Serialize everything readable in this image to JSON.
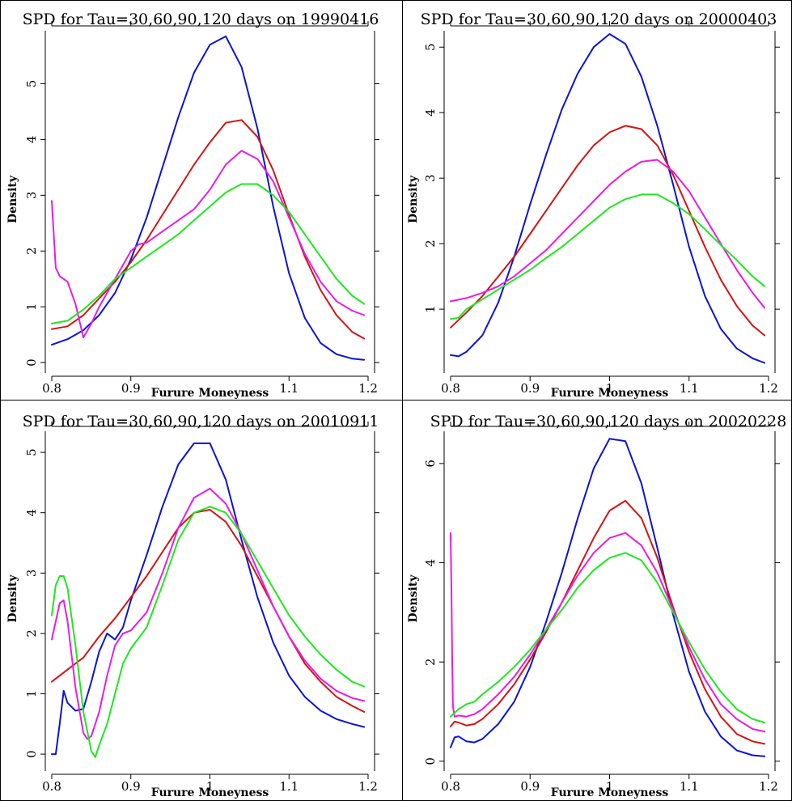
{
  "colors": {
    "tau30": "#0a14d6",
    "tau60": "#d41414",
    "tau90": "#e81ce8",
    "tau120": "#1ee81e"
  },
  "chart_data": [
    {
      "type": "line",
      "title": "SPD for Tau=30,60,90,120 days on 19990416",
      "xlabel": "Furure Moneyness",
      "ylabel": "Density",
      "xlim": [
        0.8,
        1.2
      ],
      "ylim": [
        -0.1,
        5.95
      ],
      "xticks": [
        "0.8",
        "0.9",
        "1.1",
        "1.2"
      ],
      "yticks": [
        "0",
        "1",
        "2",
        "3",
        "4",
        "5"
      ],
      "series": [
        {
          "x": [
            0.8,
            0.82,
            0.84,
            0.86,
            0.88,
            0.9,
            0.92,
            0.94,
            0.96,
            0.98,
            1.0,
            1.02,
            1.04,
            1.06,
            1.08,
            1.1,
            1.12,
            1.14,
            1.16,
            1.18,
            1.195
          ],
          "y": [
            0.32,
            0.42,
            0.58,
            0.85,
            1.25,
            1.85,
            2.6,
            3.5,
            4.4,
            5.2,
            5.7,
            5.85,
            5.3,
            4.2,
            2.8,
            1.6,
            0.8,
            0.35,
            0.15,
            0.07,
            0.05
          ]
        },
        {
          "x": [
            0.8,
            0.82,
            0.84,
            0.86,
            0.88,
            0.9,
            0.92,
            0.94,
            0.96,
            0.98,
            1.0,
            1.02,
            1.04,
            1.06,
            1.08,
            1.1,
            1.12,
            1.14,
            1.16,
            1.18,
            1.195
          ],
          "y": [
            0.6,
            0.65,
            0.85,
            1.15,
            1.45,
            1.8,
            2.2,
            2.65,
            3.1,
            3.55,
            3.95,
            4.3,
            4.35,
            4.05,
            3.45,
            2.65,
            1.9,
            1.3,
            0.85,
            0.55,
            0.43
          ]
        },
        {
          "x": [
            0.8,
            0.805,
            0.81,
            0.82,
            0.83,
            0.84,
            0.85,
            0.86,
            0.88,
            0.9,
            0.91,
            0.92,
            0.94,
            0.96,
            0.98,
            1.0,
            1.02,
            1.04,
            1.06,
            1.08,
            1.1,
            1.12,
            1.14,
            1.16,
            1.18,
            1.195
          ],
          "y": [
            2.9,
            1.7,
            1.55,
            1.45,
            1.05,
            0.45,
            0.7,
            1.0,
            1.5,
            2.0,
            2.12,
            2.15,
            2.35,
            2.55,
            2.75,
            3.1,
            3.55,
            3.8,
            3.65,
            3.25,
            2.6,
            1.95,
            1.45,
            1.1,
            0.93,
            0.85
          ]
        },
        {
          "x": [
            0.8,
            0.82,
            0.84,
            0.86,
            0.88,
            0.9,
            0.92,
            0.94,
            0.96,
            0.98,
            1.0,
            1.02,
            1.04,
            1.06,
            1.08,
            1.1,
            1.12,
            1.14,
            1.16,
            1.18,
            1.195
          ],
          "y": [
            0.7,
            0.75,
            0.95,
            1.2,
            1.5,
            1.7,
            1.9,
            2.1,
            2.3,
            2.55,
            2.8,
            3.05,
            3.2,
            3.2,
            3.0,
            2.7,
            2.3,
            1.9,
            1.5,
            1.2,
            1.05
          ]
        }
      ]
    },
    {
      "type": "line",
      "title": "SPD for Tau=30,60,90,120 days on 20000403",
      "xlabel": "Furure Moneyness",
      "ylabel": "Density",
      "xlim": [
        0.8,
        1.2
      ],
      "ylim": [
        0.1,
        5.25
      ],
      "xticks": [
        "0.8",
        "0.9",
        "1",
        "1.1",
        "1.2"
      ],
      "yticks": [
        "1",
        "2",
        "3",
        "4",
        "5"
      ],
      "series": [
        {
          "x": [
            0.8,
            0.81,
            0.82,
            0.84,
            0.86,
            0.88,
            0.9,
            0.92,
            0.94,
            0.96,
            0.98,
            1.0,
            1.02,
            1.04,
            1.06,
            1.08,
            1.1,
            1.12,
            1.14,
            1.16,
            1.18,
            1.195
          ],
          "y": [
            0.3,
            0.28,
            0.35,
            0.6,
            1.1,
            1.8,
            2.6,
            3.35,
            4.05,
            4.6,
            5.0,
            5.2,
            5.05,
            4.55,
            3.8,
            2.9,
            1.95,
            1.2,
            0.7,
            0.4,
            0.25,
            0.18
          ]
        },
        {
          "x": [
            0.8,
            0.82,
            0.84,
            0.86,
            0.88,
            0.9,
            0.92,
            0.94,
            0.96,
            0.98,
            1.0,
            1.02,
            1.04,
            1.06,
            1.08,
            1.1,
            1.12,
            1.14,
            1.16,
            1.18,
            1.195
          ],
          "y": [
            0.72,
            0.95,
            1.2,
            1.5,
            1.8,
            2.15,
            2.5,
            2.85,
            3.2,
            3.5,
            3.7,
            3.8,
            3.75,
            3.5,
            3.05,
            2.5,
            1.95,
            1.45,
            1.05,
            0.75,
            0.6
          ]
        },
        {
          "x": [
            0.8,
            0.82,
            0.84,
            0.86,
            0.88,
            0.9,
            0.92,
            0.94,
            0.96,
            0.98,
            1.0,
            1.02,
            1.04,
            1.06,
            1.08,
            1.1,
            1.12,
            1.14,
            1.16,
            1.18,
            1.195
          ],
          "y": [
            1.12,
            1.17,
            1.25,
            1.35,
            1.5,
            1.7,
            1.9,
            2.15,
            2.4,
            2.65,
            2.9,
            3.1,
            3.25,
            3.28,
            3.1,
            2.8,
            2.4,
            2.0,
            1.6,
            1.25,
            1.02
          ]
        },
        {
          "x": [
            0.8,
            0.81,
            0.82,
            0.84,
            0.86,
            0.88,
            0.9,
            0.92,
            0.94,
            0.96,
            0.98,
            1.0,
            1.02,
            1.04,
            1.06,
            1.08,
            1.1,
            1.12,
            1.14,
            1.16,
            1.18,
            1.195
          ],
          "y": [
            0.85,
            0.87,
            1.0,
            1.15,
            1.3,
            1.45,
            1.6,
            1.78,
            1.95,
            2.15,
            2.35,
            2.55,
            2.68,
            2.75,
            2.75,
            2.62,
            2.45,
            2.22,
            1.98,
            1.75,
            1.5,
            1.35
          ]
        }
      ]
    },
    {
      "type": "line",
      "title": "SPD for Tau=30,60,90,120 days on 20010911",
      "xlabel": "Furure Moneyness",
      "ylabel": "Density",
      "xlim": [
        0.8,
        1.2
      ],
      "ylim": [
        -0.2,
        5.35
      ],
      "xticks": [
        "0.8",
        "0.9",
        "1",
        "1.1",
        "1.2"
      ],
      "yticks": [
        "0",
        "1",
        "2",
        "3",
        "4",
        "5"
      ],
      "series": [
        {
          "x": [
            0.8,
            0.805,
            0.81,
            0.815,
            0.82,
            0.83,
            0.84,
            0.85,
            0.86,
            0.87,
            0.88,
            0.89,
            0.9,
            0.92,
            0.94,
            0.96,
            0.98,
            1.0,
            1.02,
            1.04,
            1.06,
            1.08,
            1.1,
            1.12,
            1.14,
            1.16,
            1.18,
            1.195
          ],
          "y": [
            0.0,
            0.0,
            0.5,
            1.05,
            0.85,
            0.72,
            0.75,
            1.2,
            1.7,
            2.0,
            1.9,
            2.1,
            2.55,
            3.3,
            4.1,
            4.8,
            5.15,
            5.15,
            4.55,
            3.55,
            2.6,
            1.85,
            1.3,
            0.95,
            0.72,
            0.58,
            0.5,
            0.45
          ]
        },
        {
          "x": [
            0.8,
            0.82,
            0.84,
            0.86,
            0.88,
            0.9,
            0.92,
            0.94,
            0.96,
            0.98,
            1.0,
            1.02,
            1.04,
            1.06,
            1.08,
            1.1,
            1.12,
            1.14,
            1.16,
            1.18,
            1.195
          ],
          "y": [
            1.2,
            1.4,
            1.6,
            1.95,
            2.25,
            2.6,
            2.95,
            3.35,
            3.75,
            4.0,
            4.05,
            3.85,
            3.45,
            2.95,
            2.45,
            1.95,
            1.5,
            1.2,
            0.95,
            0.8,
            0.7
          ]
        },
        {
          "x": [
            0.8,
            0.805,
            0.81,
            0.815,
            0.82,
            0.83,
            0.84,
            0.845,
            0.85,
            0.86,
            0.87,
            0.88,
            0.89,
            0.9,
            0.92,
            0.94,
            0.96,
            0.98,
            1.0,
            1.02,
            1.04,
            1.06,
            1.08,
            1.1,
            1.12,
            1.14,
            1.16,
            1.18,
            1.195
          ],
          "y": [
            1.9,
            2.2,
            2.5,
            2.55,
            2.2,
            1.1,
            0.35,
            0.25,
            0.3,
            0.7,
            1.3,
            1.8,
            2.0,
            2.05,
            2.35,
            3.0,
            3.75,
            4.25,
            4.4,
            4.15,
            3.65,
            3.05,
            2.45,
            1.95,
            1.55,
            1.25,
            1.05,
            0.93,
            0.88
          ]
        },
        {
          "x": [
            0.8,
            0.805,
            0.81,
            0.815,
            0.82,
            0.83,
            0.84,
            0.85,
            0.855,
            0.86,
            0.87,
            0.88,
            0.89,
            0.9,
            0.92,
            0.94,
            0.96,
            0.98,
            1.0,
            1.02,
            1.04,
            1.06,
            1.08,
            1.1,
            1.12,
            1.14,
            1.16,
            1.18,
            1.195
          ],
          "y": [
            2.3,
            2.8,
            2.95,
            2.95,
            2.75,
            1.8,
            0.7,
            0.05,
            -0.05,
            0.15,
            0.5,
            1.0,
            1.5,
            1.75,
            2.1,
            2.8,
            3.55,
            4.0,
            4.1,
            4.0,
            3.65,
            3.2,
            2.75,
            2.3,
            1.95,
            1.65,
            1.4,
            1.2,
            1.12
          ]
        }
      ]
    },
    {
      "type": "line",
      "title": "SPD for Tau=30,60,90,120 days on 20020228",
      "xlabel": "Furure Moneyness",
      "ylabel": "Density",
      "xlim": [
        0.8,
        1.2
      ],
      "ylim": [
        -0.1,
        6.65
      ],
      "xticks": [
        "0.8",
        "0.9",
        "1",
        "1.1",
        "1.2"
      ],
      "yticks": [
        "0",
        "2",
        "4",
        "6"
      ],
      "series": [
        {
          "x": [
            0.8,
            0.805,
            0.81,
            0.82,
            0.83,
            0.84,
            0.86,
            0.88,
            0.9,
            0.92,
            0.94,
            0.96,
            0.98,
            1.0,
            1.02,
            1.04,
            1.06,
            1.08,
            1.1,
            1.12,
            1.14,
            1.16,
            1.18,
            1.195
          ],
          "y": [
            0.28,
            0.48,
            0.5,
            0.4,
            0.38,
            0.45,
            0.75,
            1.2,
            1.9,
            2.8,
            3.8,
            4.9,
            5.9,
            6.5,
            6.45,
            5.6,
            4.3,
            2.95,
            1.8,
            1.0,
            0.5,
            0.22,
            0.12,
            0.1
          ]
        },
        {
          "x": [
            0.8,
            0.805,
            0.81,
            0.82,
            0.83,
            0.84,
            0.86,
            0.88,
            0.9,
            0.92,
            0.94,
            0.96,
            0.98,
            1.0,
            1.02,
            1.04,
            1.06,
            1.08,
            1.1,
            1.12,
            1.14,
            1.16,
            1.18,
            1.195
          ],
          "y": [
            0.7,
            0.8,
            0.78,
            0.72,
            0.75,
            0.85,
            1.15,
            1.55,
            2.05,
            2.6,
            3.2,
            3.85,
            4.5,
            5.05,
            5.25,
            4.9,
            4.1,
            3.1,
            2.2,
            1.45,
            0.9,
            0.55,
            0.4,
            0.35
          ]
        },
        {
          "x": [
            0.8,
            0.801,
            0.802,
            0.803,
            0.805,
            0.81,
            0.82,
            0.83,
            0.84,
            0.86,
            0.88,
            0.9,
            0.92,
            0.94,
            0.96,
            0.98,
            1.0,
            1.02,
            1.04,
            1.06,
            1.08,
            1.1,
            1.12,
            1.14,
            1.16,
            1.18,
            1.195
          ],
          "y": [
            4.6,
            3.5,
            2.0,
            1.1,
            0.9,
            0.92,
            0.9,
            0.95,
            1.05,
            1.35,
            1.7,
            2.15,
            2.65,
            3.2,
            3.75,
            4.2,
            4.5,
            4.6,
            4.35,
            3.8,
            3.05,
            2.3,
            1.65,
            1.15,
            0.85,
            0.65,
            0.6
          ]
        },
        {
          "x": [
            0.8,
            0.81,
            0.82,
            0.83,
            0.84,
            0.86,
            0.88,
            0.9,
            0.92,
            0.94,
            0.96,
            0.98,
            1.0,
            1.02,
            1.04,
            1.06,
            1.08,
            1.1,
            1.12,
            1.14,
            1.16,
            1.18,
            1.195
          ],
          "y": [
            0.9,
            1.05,
            1.15,
            1.2,
            1.35,
            1.6,
            1.9,
            2.25,
            2.65,
            3.05,
            3.5,
            3.85,
            4.1,
            4.2,
            4.05,
            3.6,
            3.0,
            2.4,
            1.85,
            1.4,
            1.05,
            0.85,
            0.78
          ]
        }
      ]
    }
  ]
}
